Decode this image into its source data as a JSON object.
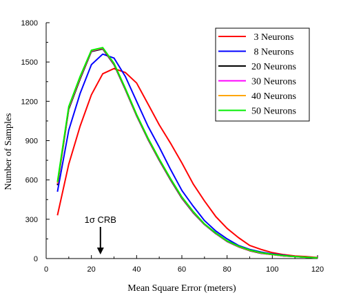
{
  "chart_data": {
    "type": "line",
    "xlabel": "Mean Square Error (meters)",
    "ylabel": "Number of Samples",
    "xlim": [
      0,
      120
    ],
    "ylim": [
      0,
      1800
    ],
    "x_ticks": [
      "0",
      "20",
      "40",
      "60",
      "80",
      "100",
      "120"
    ],
    "y_ticks": [
      "0",
      "300",
      "600",
      "900",
      "1200",
      "1500",
      "1800"
    ],
    "grid": false,
    "legend_position": "top-right",
    "x": [
      5,
      10,
      15,
      20,
      25,
      30,
      35,
      40,
      45,
      50,
      55,
      60,
      65,
      70,
      75,
      80,
      85,
      90,
      95,
      100,
      105,
      110,
      115,
      120
    ],
    "series": [
      {
        "name": " 3 Neurons",
        "color": "#ff0000",
        "values": [
          330,
          720,
          1010,
          1250,
          1410,
          1450,
          1420,
          1340,
          1180,
          1020,
          880,
          730,
          570,
          440,
          320,
          230,
          160,
          100,
          70,
          45,
          30,
          20,
          15,
          8
        ]
      },
      {
        "name": " 8 Neurons",
        "color": "#0000ff",
        "values": [
          510,
          980,
          1260,
          1480,
          1560,
          1530,
          1390,
          1200,
          1010,
          850,
          680,
          520,
          400,
          290,
          210,
          150,
          100,
          70,
          50,
          35,
          25,
          15,
          10,
          5
        ]
      },
      {
        "name": "20 Neurons",
        "color": "#000000",
        "values": [
          560,
          1140,
          1370,
          1580,
          1600,
          1480,
          1290,
          1090,
          910,
          750,
          600,
          460,
          350,
          260,
          190,
          130,
          90,
          60,
          40,
          30,
          20,
          15,
          10,
          5
        ]
      },
      {
        "name": "30 Neurons",
        "color": "#ff00ff",
        "values": [
          570,
          1150,
          1380,
          1585,
          1605,
          1485,
          1295,
          1095,
          915,
          755,
          605,
          465,
          355,
          262,
          192,
          132,
          92,
          62,
          42,
          30,
          20,
          15,
          10,
          5
        ]
      },
      {
        "name": "40 Neurons",
        "color": "#ffa500",
        "values": [
          575,
          1155,
          1385,
          1588,
          1608,
          1488,
          1298,
          1098,
          918,
          758,
          608,
          468,
          358,
          264,
          194,
          134,
          93,
          63,
          43,
          31,
          21,
          15,
          10,
          5
        ]
      },
      {
        "name": "50 Neurons",
        "color": "#00ee00",
        "values": [
          585,
          1160,
          1390,
          1590,
          1610,
          1490,
          1300,
          1100,
          920,
          760,
          610,
          470,
          360,
          265,
          195,
          135,
          95,
          65,
          45,
          32,
          22,
          15,
          10,
          5
        ]
      }
    ],
    "annotations": [
      {
        "text": "1σ CRB",
        "arrow_x": 24,
        "arrow_to_y": 0
      }
    ]
  }
}
